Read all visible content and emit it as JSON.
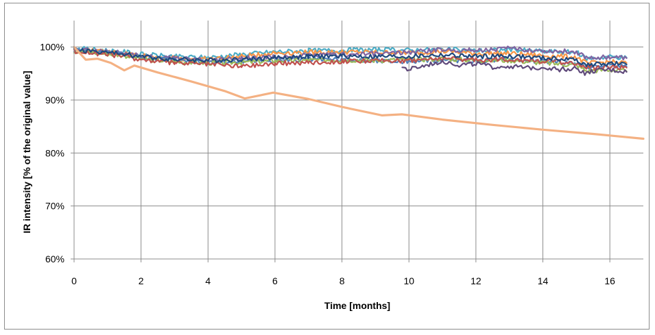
{
  "chart_data": {
    "type": "line",
    "title": "",
    "xlabel": "Time [months]",
    "ylabel": "IR intensity [% of the original value]",
    "xlim": [
      0,
      17
    ],
    "ylim": [
      60,
      105
    ],
    "x_ticks": [
      0,
      2,
      4,
      6,
      8,
      10,
      12,
      14,
      16
    ],
    "x_tick_labels": [
      "0",
      "2",
      "4",
      "6",
      "8",
      "10",
      "12",
      "14",
      "16"
    ],
    "y_ticks": [
      60,
      70,
      80,
      90,
      100
    ],
    "y_tick_labels": [
      "60%",
      "70%",
      "80%",
      "90%",
      "100%"
    ],
    "grid": true,
    "legend": "none",
    "series": [
      {
        "color": "#f4b183",
        "emphasis": true,
        "x": [
          0,
          0.35,
          0.7,
          1.1,
          1.5,
          1.8,
          2.5,
          3.5,
          4.5,
          5.1,
          5.95,
          7.0,
          8.0,
          9.2,
          9.8,
          11.0,
          12.5,
          14.0,
          15.5,
          17.0
        ],
        "y": [
          100,
          97.6,
          97.8,
          97.0,
          95.6,
          96.5,
          95.2,
          93.5,
          91.7,
          90.3,
          91.4,
          90.2,
          88.7,
          87.1,
          87.3,
          86.3,
          85.3,
          84.4,
          83.6,
          82.7
        ]
      },
      {
        "color": "#4bacc6",
        "x": [
          0,
          1.5,
          2,
          3,
          4,
          5,
          6,
          7,
          8,
          9,
          10,
          11,
          12,
          13,
          14,
          15,
          15.3,
          16,
          16.5
        ],
        "y": [
          99.8,
          99.1,
          98.6,
          98.2,
          98.0,
          98.6,
          99.1,
          99.3,
          99.4,
          99.5,
          99.4,
          99.6,
          99.3,
          99.5,
          99.2,
          99.0,
          97.8,
          98.2,
          98.0
        ]
      },
      {
        "color": "#f79646",
        "x": [
          0,
          1.5,
          2,
          3,
          4,
          5,
          6,
          7,
          8,
          9,
          10,
          11,
          12,
          13,
          14,
          15,
          15.3,
          16,
          16.5
        ],
        "y": [
          99.5,
          98.8,
          98.4,
          97.9,
          97.7,
          98.2,
          98.9,
          99.0,
          99.1,
          99.0,
          98.9,
          99.2,
          98.8,
          98.8,
          98.4,
          98.1,
          96.9,
          97.2,
          97.0
        ]
      },
      {
        "color": "#8064a2",
        "x": [
          0,
          1.5,
          2,
          3,
          4,
          5,
          6,
          7,
          8,
          9,
          10,
          11,
          12,
          13,
          14,
          15,
          15.3,
          16,
          16.5
        ],
        "y": [
          99.6,
          98.9,
          98.3,
          97.8,
          97.6,
          97.9,
          98.1,
          98.4,
          98.6,
          98.7,
          99.0,
          99.5,
          99.4,
          99.7,
          99.3,
          99.1,
          98.0,
          98.1,
          97.9
        ]
      },
      {
        "color": "#4f81bd",
        "x": [
          0,
          1.5,
          2,
          3,
          4,
          5,
          6,
          7,
          8,
          9,
          10,
          11,
          12,
          13,
          14,
          15,
          15.3,
          16,
          16.5
        ],
        "y": [
          99.4,
          98.6,
          98.1,
          97.5,
          97.2,
          97.3,
          97.5,
          97.7,
          97.6,
          97.4,
          97.3,
          97.6,
          97.4,
          97.6,
          97.3,
          97.1,
          96.2,
          96.5,
          96.3
        ]
      },
      {
        "color": "#9bbb59",
        "x": [
          0,
          1.5,
          2,
          3,
          4,
          5,
          6,
          7,
          8,
          9,
          10,
          11,
          12,
          13,
          14,
          15,
          15.3,
          16,
          16.5
        ],
        "y": [
          99.3,
          98.4,
          97.8,
          97.2,
          97.0,
          97.1,
          97.4,
          97.5,
          97.6,
          97.5,
          97.6,
          97.8,
          97.5,
          97.5,
          97.0,
          96.6,
          95.5,
          95.7,
          95.4
        ]
      },
      {
        "color": "#c0504d",
        "x": [
          0,
          1.5,
          2,
          3,
          4,
          5,
          6,
          7,
          8,
          9,
          10,
          11,
          12,
          13,
          14,
          15,
          15.3,
          16,
          16.5
        ],
        "y": [
          99.2,
          98.3,
          97.6,
          97.0,
          96.8,
          96.4,
          96.9,
          97.1,
          97.3,
          97.4,
          97.5,
          97.9,
          97.6,
          97.7,
          97.4,
          97.0,
          96.0,
          96.3,
          96.1
        ]
      },
      {
        "color": "#1f497d",
        "x": [
          0,
          1.5,
          2,
          3,
          4,
          5,
          6,
          7,
          8,
          9,
          10,
          11,
          12,
          13,
          14,
          15,
          15.3,
          16,
          16.5
        ],
        "y": [
          99.5,
          98.7,
          98.2,
          97.7,
          97.5,
          97.7,
          98.0,
          98.2,
          98.3,
          98.2,
          98.2,
          98.5,
          98.2,
          98.3,
          97.9,
          97.6,
          96.6,
          96.9,
          96.7
        ]
      },
      {
        "color": "#604a7b",
        "x": [
          9.8,
          10.0,
          10.5,
          11.0,
          11.5,
          12.0,
          12.5,
          13.0,
          13.5,
          14.0,
          14.5,
          15.0,
          15.3,
          15.5,
          16.0,
          16.5
        ],
        "y": [
          96.1,
          95.7,
          96.5,
          97.4,
          96.6,
          96.9,
          96.2,
          96.4,
          96.0,
          96.2,
          95.8,
          96.0,
          94.9,
          95.5,
          95.7,
          95.3
        ]
      }
    ]
  }
}
